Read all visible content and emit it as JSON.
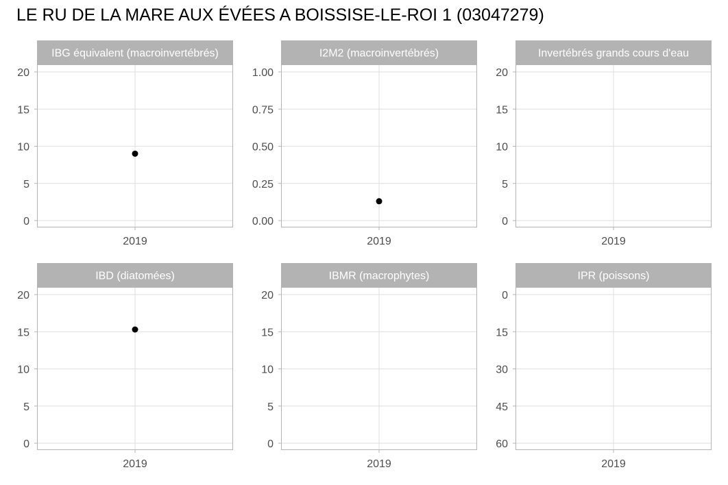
{
  "chart_data": {
    "title": "LE RU DE LA MARE AUX ÉVÉES A BOISSISE-LE-ROI 1 (03047279)",
    "type": "scatter",
    "grid": true,
    "point_color": "#000000",
    "strip_color": "#b3b3b3",
    "panels": [
      {
        "name": "IBG équivalent (macroinvertébrés)",
        "x_categories": [
          "2019"
        ],
        "y_ticks": [
          "0",
          "5",
          "10",
          "15",
          "20"
        ],
        "ylim": [
          0,
          20
        ],
        "y_reversed": false,
        "points": [
          {
            "x": "2019",
            "y": 9
          }
        ]
      },
      {
        "name": "I2M2 (macroinvertébrés)",
        "x_categories": [
          "2019"
        ],
        "y_ticks": [
          "0.00",
          "0.25",
          "0.50",
          "0.75",
          "1.00"
        ],
        "ylim": [
          0,
          1
        ],
        "y_reversed": false,
        "points": [
          {
            "x": "2019",
            "y": 0.13
          }
        ]
      },
      {
        "name": "Invertébrés grands cours d'eau",
        "x_categories": [
          "2019"
        ],
        "y_ticks": [
          "0",
          "5",
          "10",
          "15",
          "20"
        ],
        "ylim": [
          0,
          20
        ],
        "y_reversed": false,
        "points": []
      },
      {
        "name": "IBD (diatomées)",
        "x_categories": [
          "2019"
        ],
        "y_ticks": [
          "0",
          "5",
          "10",
          "15",
          "20"
        ],
        "ylim": [
          0,
          20
        ],
        "y_reversed": false,
        "points": [
          {
            "x": "2019",
            "y": 15.3
          }
        ]
      },
      {
        "name": "IBMR (macrophytes)",
        "x_categories": [
          "2019"
        ],
        "y_ticks": [
          "0",
          "5",
          "10",
          "15",
          "20"
        ],
        "ylim": [
          0,
          20
        ],
        "y_reversed": false,
        "points": []
      },
      {
        "name": "IPR (poissons)",
        "x_categories": [
          "2019"
        ],
        "y_ticks": [
          "0",
          "15",
          "30",
          "45",
          "60"
        ],
        "ylim": [
          0,
          60
        ],
        "y_reversed": true,
        "points": []
      }
    ]
  }
}
